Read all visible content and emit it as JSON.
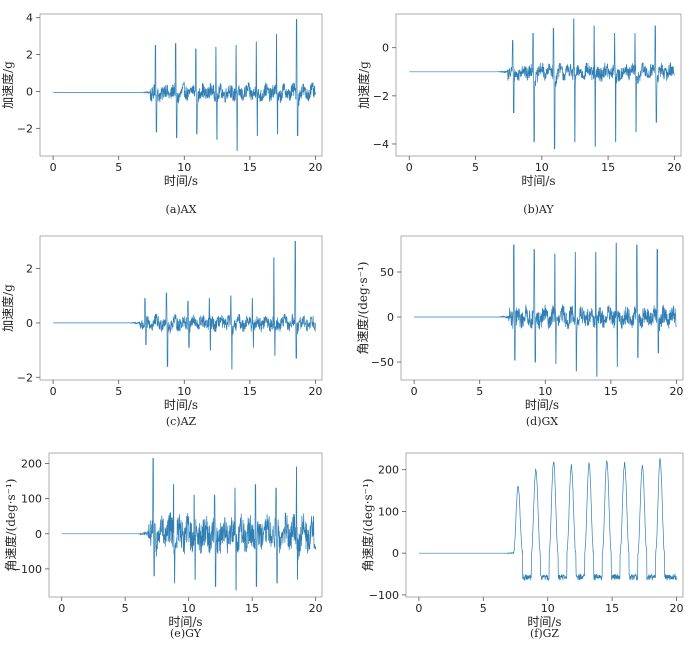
{
  "chart_data": [
    {
      "type": "line",
      "caption": "(a)AX",
      "xlabel": "时间/s",
      "ylabel": "加速度/g",
      "xlim": [
        -1,
        20.5
      ],
      "ylim": [
        -3.5,
        4.2
      ],
      "xticks": [
        0,
        5,
        10,
        15,
        20
      ],
      "yticks": [
        -2,
        0,
        2,
        4
      ],
      "quiet_until": 7.4,
      "baseline": -0.05,
      "signal": {
        "spikes_up": [
          2.5,
          2.6,
          2.3,
          2.4,
          2.5,
          2.7,
          3.1,
          3.9
        ],
        "spikes_down": [
          -2.2,
          -2.5,
          -2.3,
          -2.6,
          -3.2,
          -2.4,
          -2.3,
          -2.4
        ],
        "noise": 0.4
      },
      "series": [
        {
          "color": "#2f7fb5"
        }
      ]
    },
    {
      "type": "line",
      "caption": "(b)AY",
      "xlabel": "时间/s",
      "ylabel": "加速度/g",
      "xlim": [
        -1,
        20.5
      ],
      "ylim": [
        -4.5,
        1.4
      ],
      "xticks": [
        0,
        5,
        10,
        15,
        20
      ],
      "yticks": [
        -4,
        -2,
        0
      ],
      "quiet_until": 7.4,
      "baseline": -1.0,
      "signal": {
        "spikes_up": [
          0.3,
          0.6,
          0.8,
          1.2,
          0.9,
          0.6,
          0.6,
          0.9
        ],
        "spikes_down": [
          -2.7,
          -3.9,
          -4.2,
          -3.9,
          -4.1,
          -3.9,
          -3.5,
          -3.1
        ],
        "noise": 0.3
      },
      "series": [
        {
          "color": "#2f7fb5"
        }
      ]
    },
    {
      "type": "line",
      "caption": "(c)AZ",
      "xlabel": "时间/s",
      "ylabel": "加速度/g",
      "xlim": [
        -1,
        20.5
      ],
      "ylim": [
        -2.1,
        3.2
      ],
      "xticks": [
        0,
        5,
        10,
        15,
        20
      ],
      "yticks": [
        -2,
        0,
        2
      ],
      "quiet_until": 6.6,
      "baseline": 0.0,
      "signal": {
        "spikes_up": [
          0.9,
          1.1,
          0.8,
          0.9,
          1.0,
          0.9,
          2.4,
          3.0
        ],
        "spikes_down": [
          -0.8,
          -1.6,
          -0.9,
          -1.0,
          -1.7,
          -0.9,
          -1.2,
          -1.3
        ],
        "noise": 0.25
      },
      "series": [
        {
          "color": "#2f7fb5"
        }
      ]
    },
    {
      "type": "line",
      "caption": "(d)GX",
      "xlabel": "时间/s",
      "ylabel": "角速度/(deg·s⁻¹)",
      "xlim": [
        -1,
        20.5
      ],
      "ylim": [
        -70,
        90
      ],
      "xticks": [
        0,
        5,
        10,
        15,
        20
      ],
      "yticks": [
        -50,
        0,
        50
      ],
      "quiet_until": 7.2,
      "baseline": 0.0,
      "signal": {
        "spikes_up": [
          80,
          75,
          70,
          72,
          72,
          82,
          80,
          75
        ],
        "spikes_down": [
          -48,
          -50,
          -52,
          -60,
          -66,
          -55,
          -45,
          -40
        ],
        "noise": 10
      },
      "series": [
        {
          "color": "#2f7fb5"
        }
      ]
    },
    {
      "type": "line",
      "caption": "(e)GY",
      "xlabel": "时间/s",
      "ylabel": "角速度/(deg·s⁻¹)",
      "xlim": [
        -1,
        20.5
      ],
      "ylim": [
        -180,
        230
      ],
      "xticks": [
        0,
        5,
        10,
        15,
        20
      ],
      "yticks": [
        -100,
        0,
        100,
        200
      ],
      "quiet_until": 6.8,
      "baseline": 0.0,
      "signal": {
        "spikes_up": [
          215,
          140,
          110,
          110,
          130,
          140,
          130,
          190
        ],
        "spikes_down": [
          -120,
          -140,
          -130,
          -150,
          -160,
          -150,
          -140,
          -130
        ],
        "noise": 45
      },
      "series": [
        {
          "color": "#2f7fb5"
        }
      ]
    },
    {
      "type": "line",
      "caption": "(f)GZ",
      "xlabel": "时间/s",
      "ylabel": "角速度/(deg·s⁻¹)",
      "xlim": [
        -1,
        20.5
      ],
      "ylim": [
        -105,
        240
      ],
      "xticks": [
        0,
        5,
        10,
        15,
        20
      ],
      "yticks": [
        -100,
        0,
        100,
        200
      ],
      "quiet_until": 7.3,
      "baseline": 0.0,
      "signal": {
        "spikes_up": [
          160,
          200,
          220,
          210,
          215,
          220,
          215,
          210,
          225
        ],
        "spikes_down": [
          -70,
          -75,
          -80,
          -75,
          -80,
          -82,
          -85,
          -80,
          -90
        ],
        "noise": 8
      },
      "series": [
        {
          "color": "#2f7fb5"
        }
      ]
    }
  ]
}
